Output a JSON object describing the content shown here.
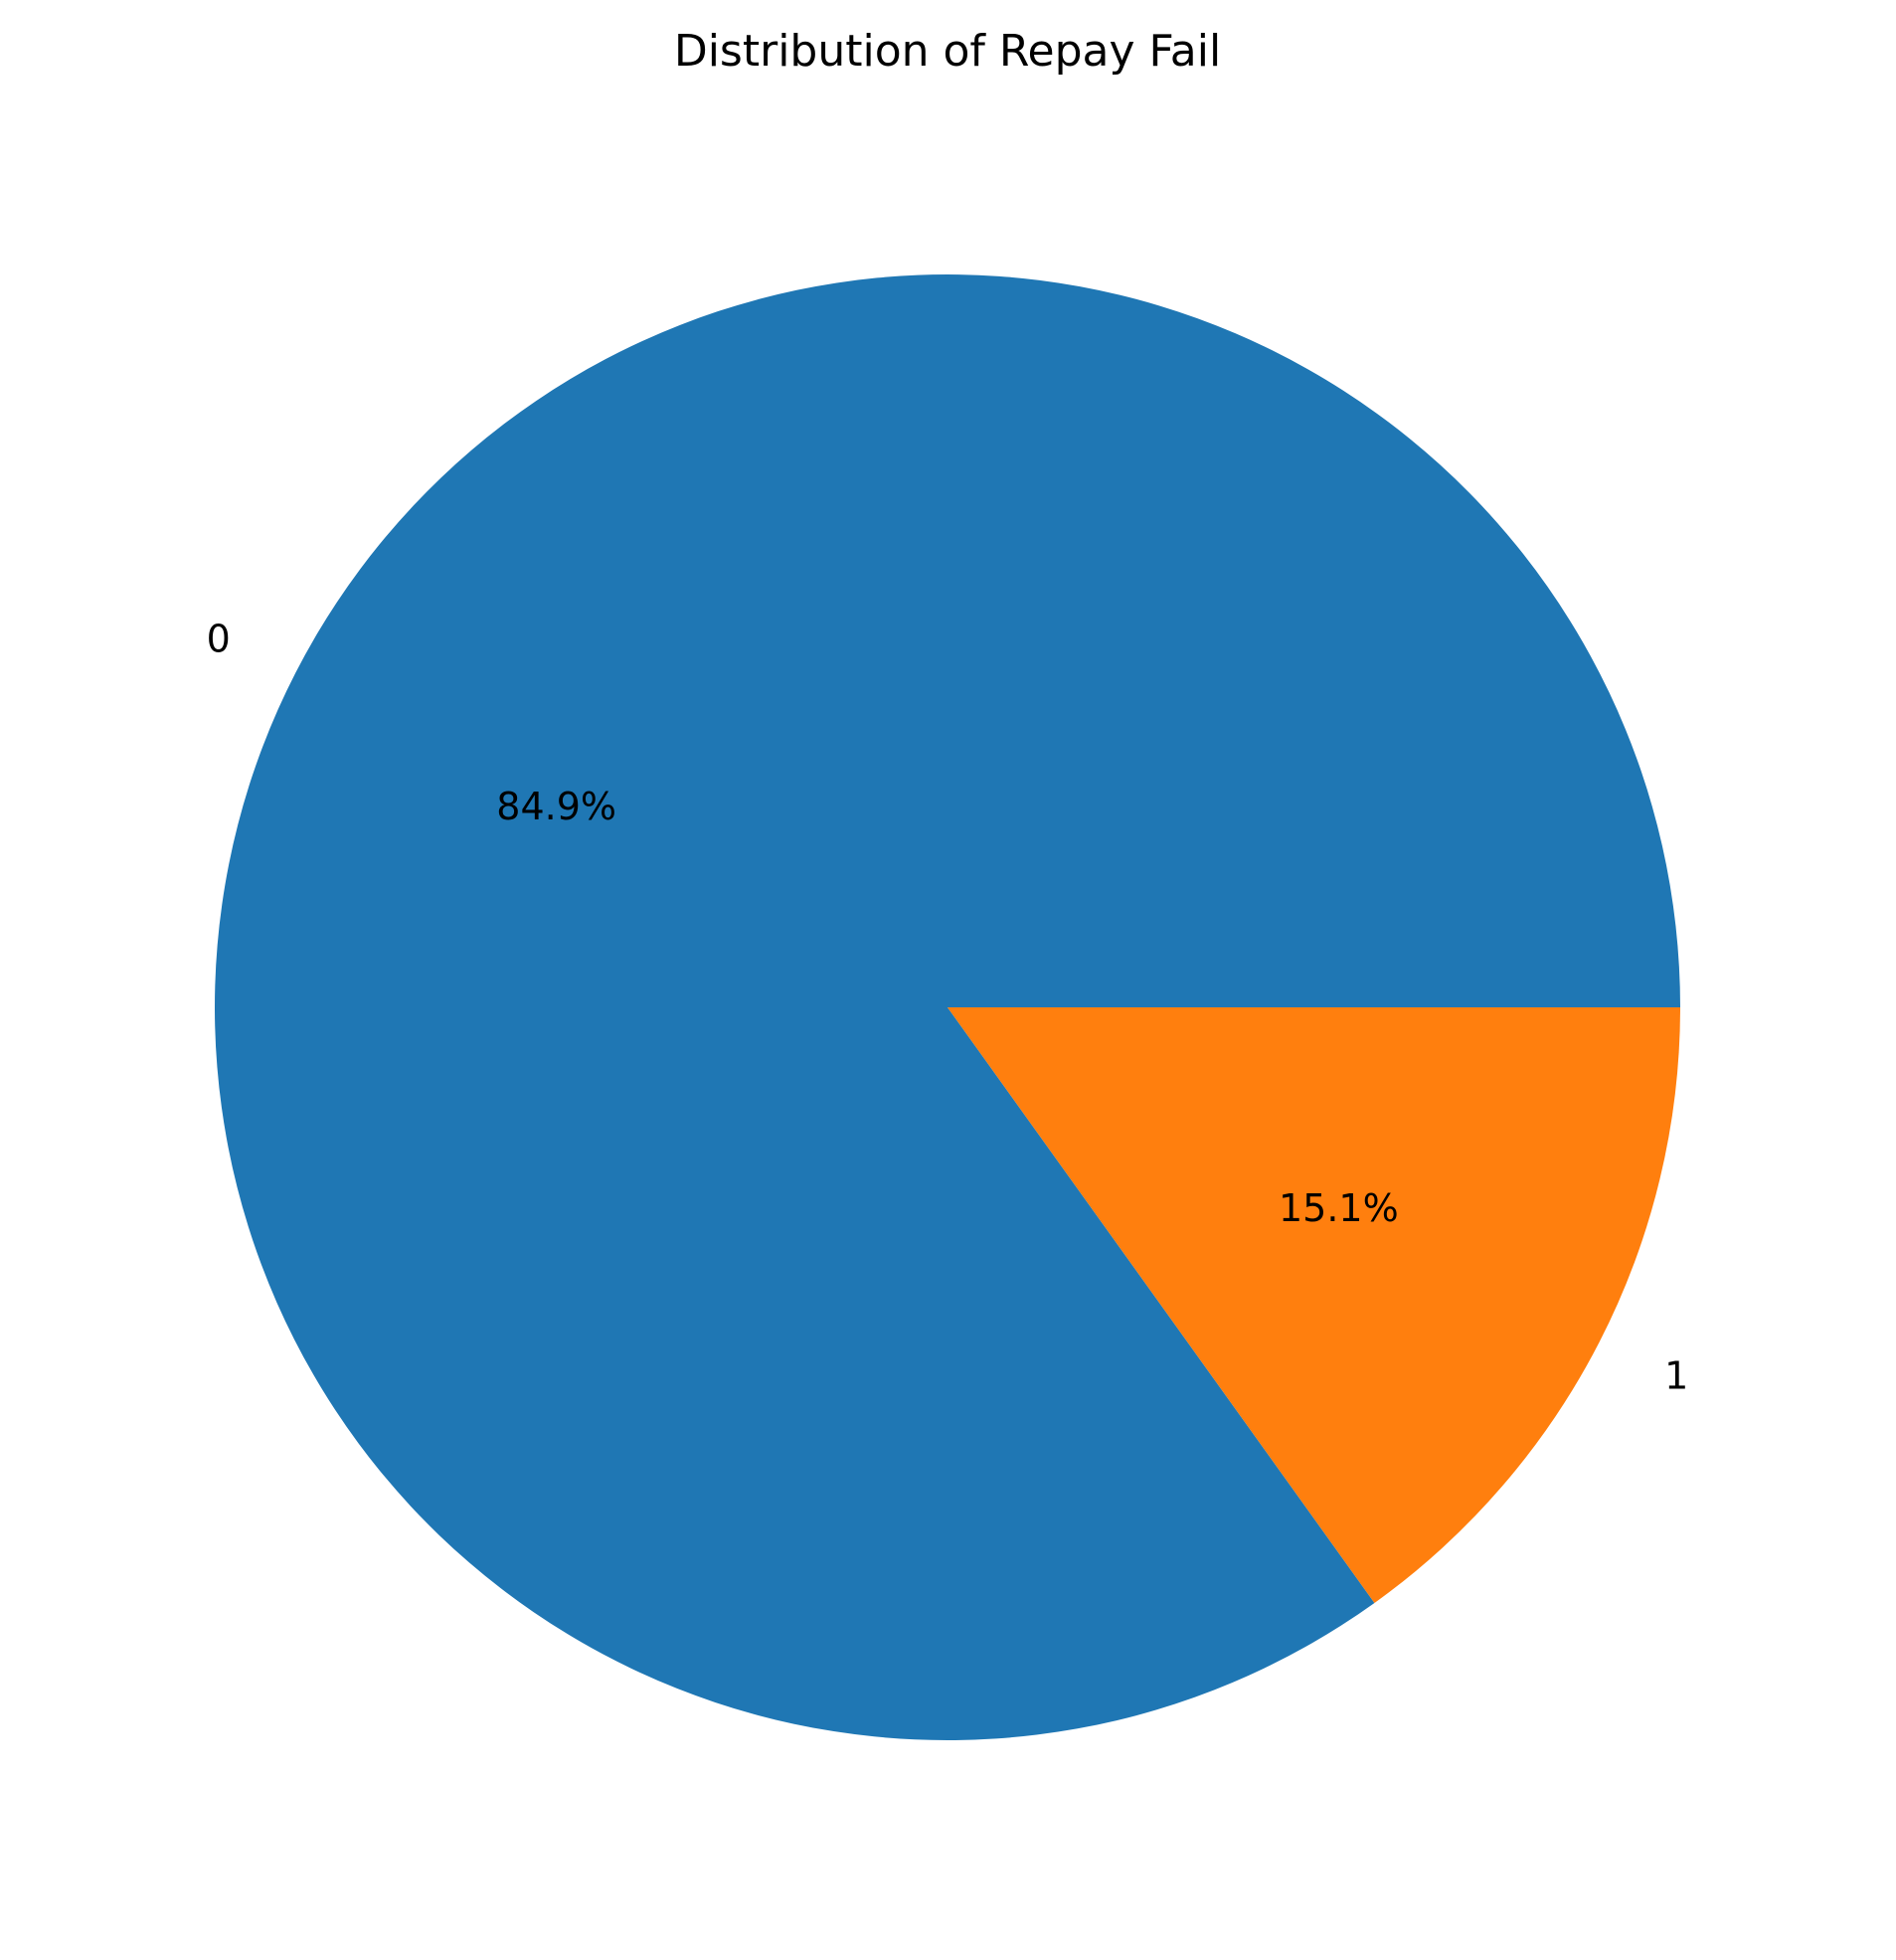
{
  "chart_data": {
    "type": "pie",
    "title": "Distribution of Repay Fail",
    "categories": [
      "0",
      "1"
    ],
    "values": [
      84.9,
      15.1
    ],
    "value_labels": [
      "84.9%",
      "15.1%"
    ],
    "colors": [
      "#1f77b4",
      "#ff7f0e"
    ],
    "start_angle_deg": 0,
    "direction": "counterclockwise",
    "legend": "none"
  }
}
